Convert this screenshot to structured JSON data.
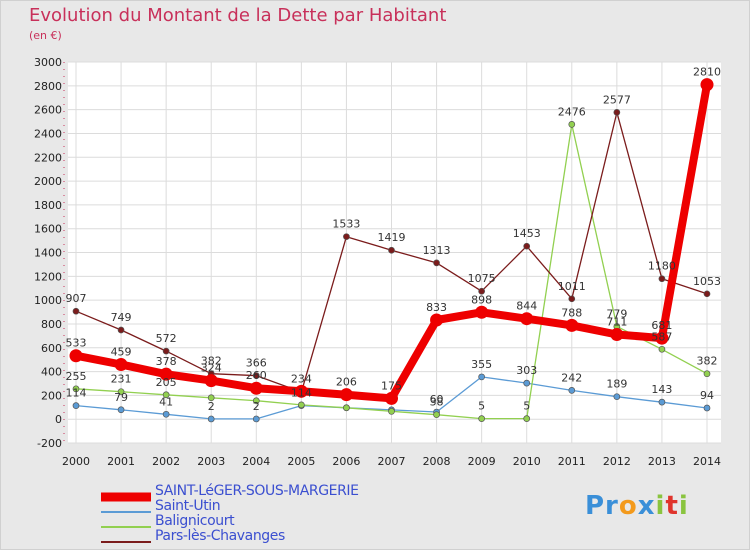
{
  "header": {
    "title": "Evolution du Montant de la Dette par Habitant",
    "subtitle": "(en €)"
  },
  "brand": {
    "parts": [
      "Pr",
      "o",
      "x",
      "i",
      "t",
      "i"
    ],
    "colors": [
      "#3a8fd8",
      "#f39a1c",
      "#3a8fd8",
      "#8ac43f",
      "#e0342c",
      "#8ac43f"
    ]
  },
  "chart_data": {
    "type": "line",
    "title": "Evolution du Montant de la Dette par Habitant",
    "ylabel": "(en €)",
    "x": [
      "2000",
      "2001",
      "2002",
      "2003",
      "2004",
      "2005",
      "2006",
      "2007",
      "2008",
      "2009",
      "2010",
      "2011",
      "2012",
      "2013",
      "2014"
    ],
    "yticks": [
      "-200",
      "0",
      "200",
      "400",
      "600",
      "800",
      "1000",
      "1200",
      "1400",
      "1600",
      "1800",
      "2000",
      "2200",
      "2400",
      "2600",
      "2800",
      "3000"
    ],
    "ylim": [
      -200,
      3000
    ],
    "grid": true,
    "legend_position": "bottom-left",
    "series": [
      {
        "name": "SAINT-LéGER-SOUS-MARGERIE",
        "color": "#ee0000",
        "values": [
          533,
          459,
          378,
          324,
          260,
          234,
          206,
          175,
          833,
          898,
          844,
          788,
          711,
          681,
          2810
        ],
        "labels": [
          "533",
          "459",
          "378",
          "324",
          "260",
          "234",
          "206",
          "175",
          "833",
          "898",
          "844",
          "788",
          "711",
          "681",
          "2810"
        ]
      },
      {
        "name": "Saint-Utin",
        "color": "#5b9bd5",
        "values": [
          114,
          79,
          41,
          2,
          2,
          114,
          96,
          78,
          60,
          355,
          303,
          242,
          189,
          143,
          94
        ],
        "labels": [
          "114",
          "79",
          "41",
          "2",
          "2",
          "114",
          "",
          "",
          "60",
          "355",
          "303",
          "242",
          "189",
          "143",
          "94"
        ]
      },
      {
        "name": "Balignicourt",
        "color": "#92d050",
        "values": [
          255,
          231,
          205,
          180,
          155,
          120,
          96,
          66,
          38,
          5,
          5,
          2476,
          779,
          587,
          382
        ],
        "labels": [
          "255",
          "231",
          "205",
          "",
          "",
          "",
          "",
          "",
          "38",
          "5",
          "5",
          "2476",
          "779",
          "587",
          "382"
        ]
      },
      {
        "name": "Pars-lès-Chavanges",
        "color": "#7b1c1c",
        "values": [
          907,
          749,
          572,
          382,
          366,
          228,
          1533,
          1419,
          1313,
          1075,
          1453,
          1011,
          2577,
          1180,
          1053
        ],
        "labels": [
          "907",
          "749",
          "572",
          "382",
          "366",
          "",
          "1533",
          "1419",
          "1313",
          "1075",
          "1453",
          "1011",
          "2577",
          "1180",
          "1053"
        ]
      }
    ]
  }
}
